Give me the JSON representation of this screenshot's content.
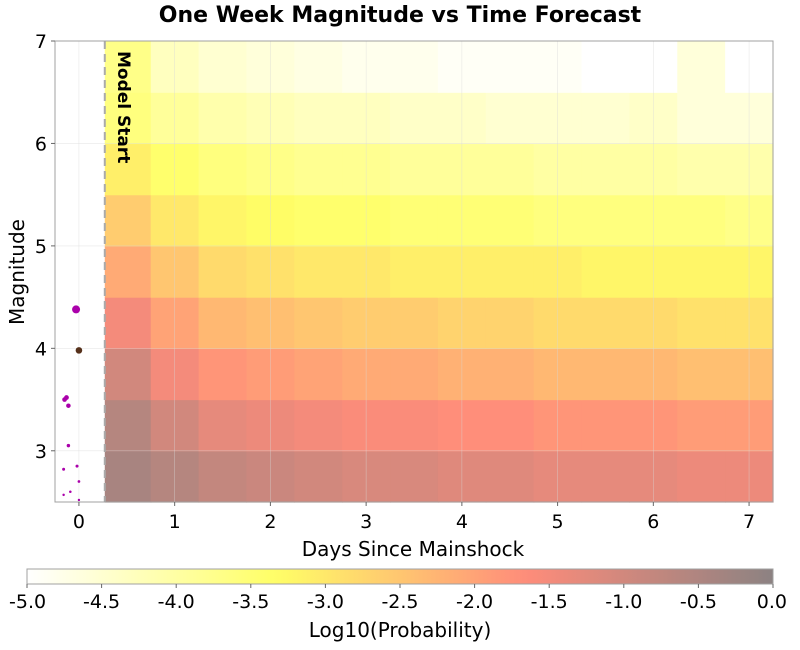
{
  "chart_data": {
    "type": "heatmap",
    "title": "One Week Magnitude vs Time Forecast",
    "xlabel": "Days Since Mainshock",
    "ylabel": "Magnitude",
    "xlim": [
      -0.25,
      7.25
    ],
    "ylim": [
      2.5,
      7.0
    ],
    "xticks": [
      0,
      1,
      2,
      3,
      4,
      5,
      6,
      7
    ],
    "yticks": [
      3,
      4,
      5,
      6,
      7
    ],
    "annotation": {
      "text": "Model Start",
      "x": 0.27
    },
    "colorbar": {
      "label": "Log10(Probability)",
      "min": -5.0,
      "max": 0.0,
      "ticks": [
        "-5.0",
        "-4.5",
        "-4.0",
        "-3.5",
        "-3.0",
        "-2.5",
        "-2.0",
        "-1.5",
        "-1.0",
        "-0.5",
        "0.0"
      ],
      "colors": [
        "#ffffff",
        "#ffff66",
        "#ff8c7a",
        "#8c8282"
      ]
    },
    "heatmap": {
      "x_bin_edges": [
        0.27,
        0.75,
        1.25,
        1.75,
        2.25,
        2.75,
        3.25,
        3.75,
        4.25,
        4.75,
        5.25,
        5.75,
        6.25,
        6.75,
        7.25
      ],
      "mag_bin_edges": [
        2.5,
        3.0,
        3.5,
        4.0,
        4.5,
        5.0,
        5.5,
        6.0,
        6.5,
        7.0
      ],
      "log10_probability": [
        [
          -0.4,
          -0.6,
          -0.8,
          -0.9,
          -1.0,
          -1.1,
          -1.1,
          -1.2,
          -1.2,
          -1.3,
          -1.3,
          -1.3,
          -1.4,
          -1.4
        ],
        [
          -0.6,
          -1.0,
          -1.3,
          -1.4,
          -1.5,
          -1.6,
          -1.6,
          -1.7,
          -1.7,
          -1.8,
          -1.8,
          -1.8,
          -1.9,
          -1.9
        ],
        [
          -1.0,
          -1.5,
          -1.8,
          -1.9,
          -2.0,
          -2.1,
          -2.1,
          -2.2,
          -2.2,
          -2.3,
          -2.3,
          -2.3,
          -2.4,
          -2.4
        ],
        [
          -1.5,
          -2.0,
          -2.3,
          -2.4,
          -2.5,
          -2.6,
          -2.6,
          -2.7,
          -2.7,
          -2.8,
          -2.8,
          -2.8,
          -2.9,
          -2.9
        ],
        [
          -2.1,
          -2.5,
          -2.8,
          -2.9,
          -3.0,
          -3.0,
          -3.1,
          -3.1,
          -3.1,
          -3.1,
          -3.2,
          -3.2,
          -3.2,
          -3.2
        ],
        [
          -2.6,
          -3.0,
          -3.2,
          -3.3,
          -3.4,
          -3.4,
          -3.5,
          -3.5,
          -3.5,
          -3.6,
          -3.6,
          -3.6,
          -3.6,
          -3.7
        ],
        [
          -3.1,
          -3.4,
          -3.6,
          -3.7,
          -3.8,
          -3.8,
          -3.9,
          -3.9,
          -3.9,
          -4.0,
          -4.0,
          -4.0,
          -4.1,
          -4.1
        ],
        [
          -3.6,
          -3.9,
          -4.1,
          -4.2,
          -4.3,
          -4.3,
          -4.4,
          -4.4,
          -4.5,
          -4.5,
          -4.5,
          -4.4,
          -4.6,
          -4.6
        ],
        [
          -3.7,
          -4.3,
          -4.5,
          -4.6,
          -4.7,
          -4.8,
          -4.8,
          -4.9,
          -4.9,
          -4.9,
          -5.0,
          -5.0,
          -4.6,
          -5.0
        ]
      ]
    },
    "aftershocks": [
      {
        "x": -0.03,
        "mag": 4.38,
        "color": "#aa00aa"
      },
      {
        "x": 0.0,
        "mag": 3.98,
        "color": "#55301a"
      },
      {
        "x": -0.15,
        "mag": 3.5,
        "color": "#aa00aa"
      },
      {
        "x": -0.13,
        "mag": 3.52,
        "color": "#aa00aa"
      },
      {
        "x": -0.11,
        "mag": 3.44,
        "color": "#aa00aa"
      },
      {
        "x": -0.11,
        "mag": 3.05,
        "color": "#aa00aa"
      },
      {
        "x": -0.16,
        "mag": 2.82,
        "color": "#aa00aa"
      },
      {
        "x": -0.02,
        "mag": 2.85,
        "color": "#aa00aa"
      },
      {
        "x": 0.0,
        "mag": 2.7,
        "color": "#aa00aa"
      },
      {
        "x": -0.09,
        "mag": 2.6,
        "color": "#aa00aa"
      },
      {
        "x": -0.16,
        "mag": 2.57,
        "color": "#aa00aa"
      },
      {
        "x": 0.0,
        "mag": 2.52,
        "color": "#aa00aa"
      }
    ]
  }
}
